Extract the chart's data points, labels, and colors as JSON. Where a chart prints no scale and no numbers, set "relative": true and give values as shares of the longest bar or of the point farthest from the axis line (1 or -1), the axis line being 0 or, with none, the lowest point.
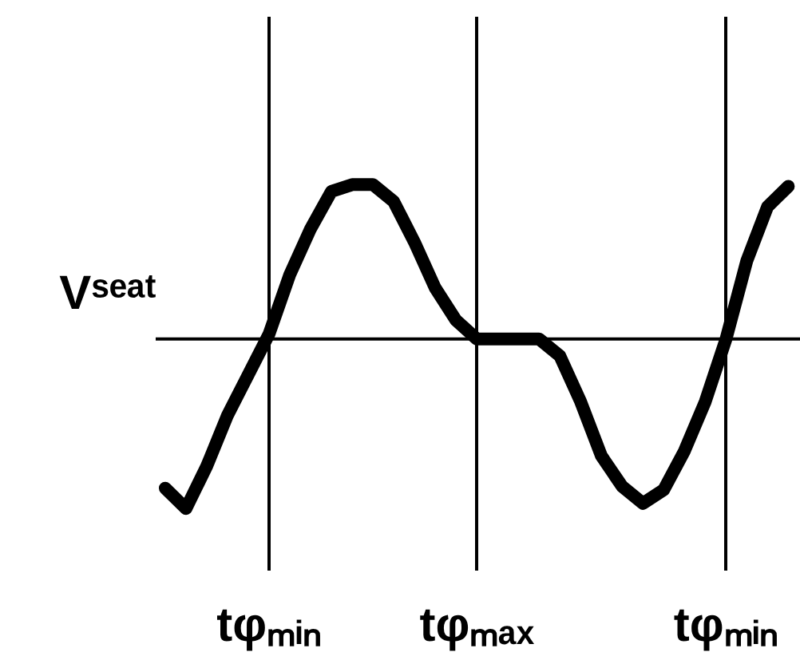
{
  "chart_data": {
    "type": "line",
    "relative": true,
    "ylabel": "Vˢᵉᵃᵗ",
    "categories": [
      null,
      null,
      null,
      null,
      null,
      "tφₘᵢₙ",
      null,
      null,
      null,
      null,
      null,
      null,
      null,
      null,
      null,
      "tφₘₐₓ",
      null,
      null,
      null,
      null,
      null,
      null,
      null,
      null,
      null,
      null,
      null,
      "tφₘᵢₙ",
      null,
      null,
      null
    ],
    "series": [
      {
        "color": "#000000",
        "values": [
          -0.88,
          -1,
          -0.75,
          -0.45,
          -0.21,
          0.03,
          0.38,
          0.65,
          0.87,
          0.91,
          0.91,
          0.81,
          0.57,
          0.3,
          0.11,
          0,
          0,
          0,
          0,
          -0.1,
          -0.37,
          -0.69,
          -0.87,
          -0.97,
          -0.89,
          -0.66,
          -0.37,
          0,
          0.46,
          0.78,
          0.9
        ]
      }
    ],
    "grid": "x",
    "marker": "none",
    "line_style": "solid"
  }
}
